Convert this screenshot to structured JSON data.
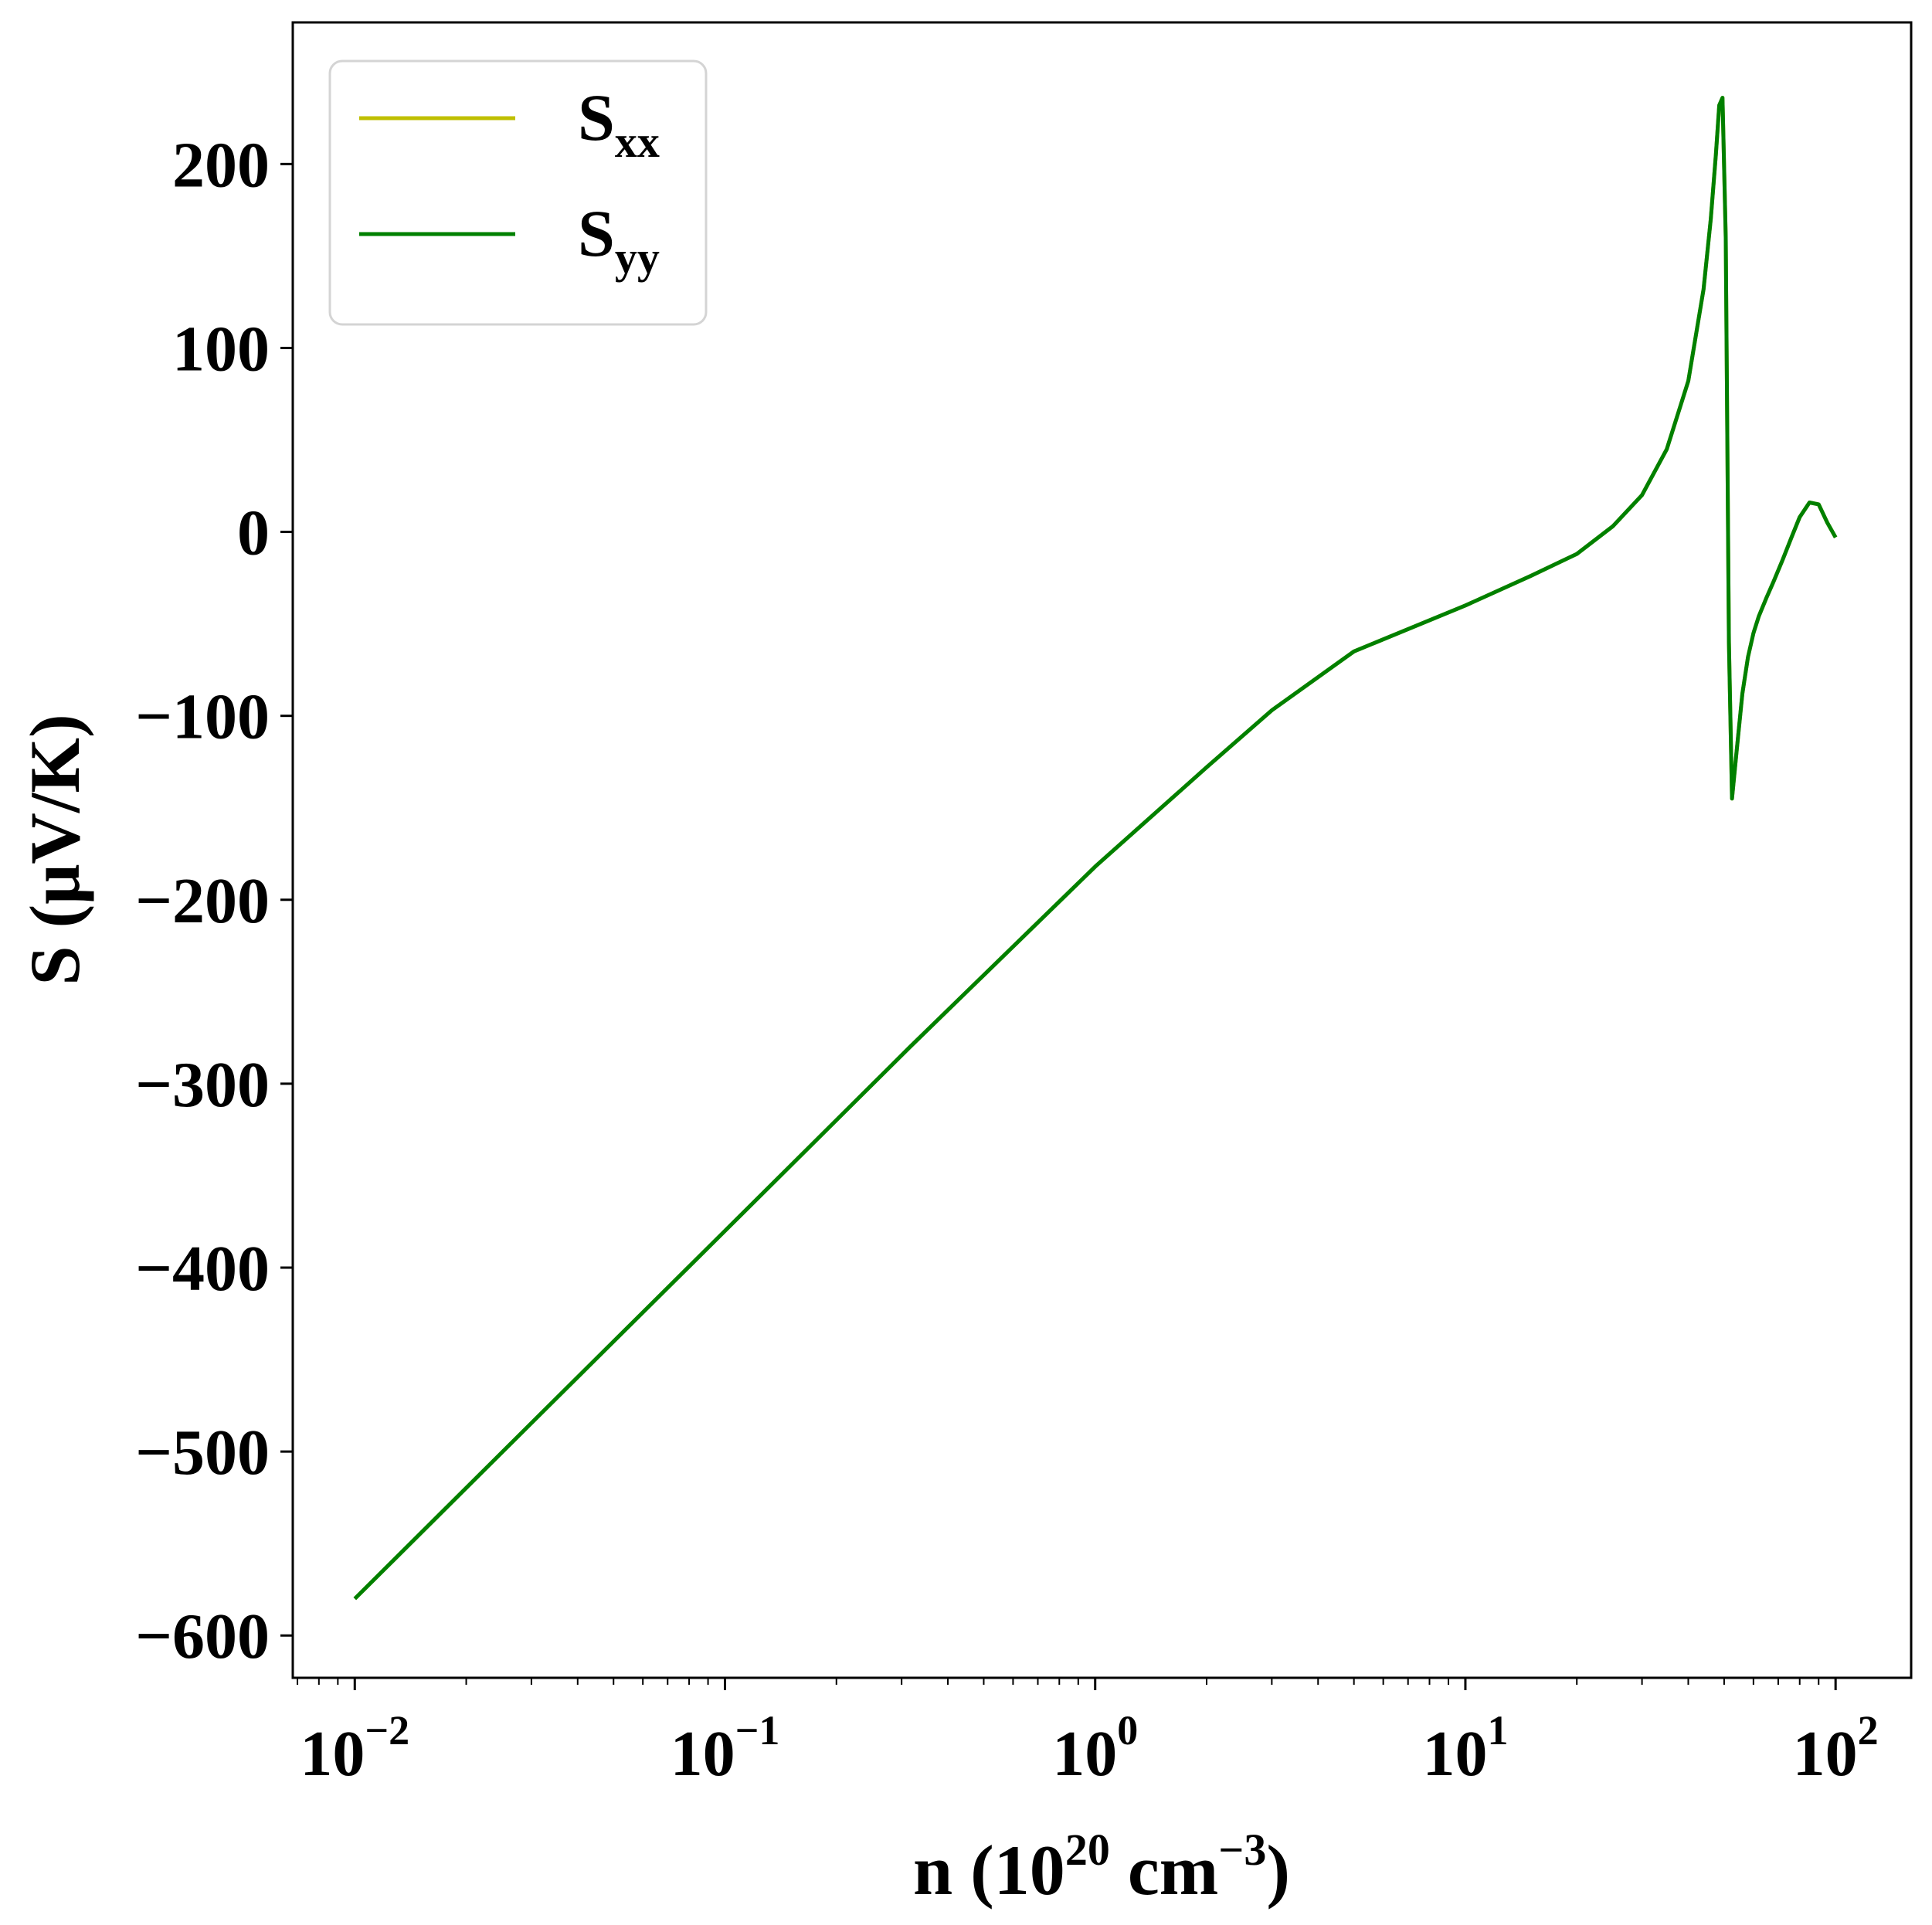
{
  "chart_data": {
    "type": "line",
    "title": "",
    "xlabel": {
      "base": "n (10",
      "exp1": "20",
      "mid": " cm",
      "exp2": "−3",
      "tail": ")"
    },
    "ylabel": "S (μV/K)",
    "xscale": "log",
    "xlim": [
      0.0068,
      160
    ],
    "ylim": [
      -623,
      277
    ],
    "x_ticks": [
      {
        "value": 0.01,
        "base": "10",
        "exp": "−2"
      },
      {
        "value": 0.1,
        "base": "10",
        "exp": "−1"
      },
      {
        "value": 1,
        "base": "10",
        "exp": "0"
      },
      {
        "value": 10,
        "base": "10",
        "exp": "1"
      },
      {
        "value": 100,
        "base": "10",
        "exp": "2"
      }
    ],
    "y_ticks": [
      {
        "value": 200,
        "label": "200"
      },
      {
        "value": 100,
        "label": "100"
      },
      {
        "value": 0,
        "label": "0"
      },
      {
        "value": -100,
        "label": "−100"
      },
      {
        "value": -200,
        "label": "−200"
      },
      {
        "value": -300,
        "label": "−300"
      },
      {
        "value": -400,
        "label": "−400"
      },
      {
        "value": -500,
        "label": "−500"
      },
      {
        "value": -600,
        "label": "−600"
      }
    ],
    "grid": false,
    "legend_position": "top-left",
    "series": [
      {
        "name": "S",
        "sub": "xx",
        "color": "#bfbf00",
        "x": [
          0.01,
          0.0316,
          0.1,
          0.316,
          1,
          2,
          3,
          5,
          10,
          15,
          20,
          25,
          30,
          35,
          40,
          44,
          46,
          47.5,
          48.5,
          49.5,
          50.5,
          51.5,
          52.5,
          54,
          56,
          58,
          60,
          62,
          65,
          68,
          72,
          76,
          80,
          85,
          90,
          95,
          100
        ],
        "values": [
          -580,
          -480,
          -380,
          -280,
          -182,
          -128,
          -97,
          -65,
          -40,
          -24,
          -12,
          3,
          20,
          45,
          82,
          132,
          170,
          205,
          232,
          236,
          160,
          -60,
          -145,
          -120,
          -88,
          -68,
          -55,
          -46,
          -36,
          -27,
          -15,
          -3,
          8,
          16,
          15,
          5,
          -3
        ]
      },
      {
        "name": "S",
        "sub": "yy",
        "color": "#008000",
        "x": [
          0.01,
          0.0316,
          0.1,
          0.316,
          1,
          2,
          3,
          5,
          10,
          15,
          20,
          25,
          30,
          35,
          40,
          44,
          46,
          47.5,
          48.5,
          49.5,
          50.5,
          51.5,
          52.5,
          54,
          56,
          58,
          60,
          62,
          65,
          68,
          72,
          76,
          80,
          85,
          90,
          95,
          100
        ],
        "values": [
          -580,
          -480,
          -380,
          -280,
          -182,
          -128,
          -97,
          -65,
          -40,
          -24,
          -12,
          3,
          20,
          45,
          82,
          132,
          170,
          205,
          232,
          236,
          160,
          -60,
          -145,
          -120,
          -88,
          -68,
          -55,
          -46,
          -36,
          -27,
          -15,
          -3,
          8,
          16,
          15,
          5,
          -3
        ]
      }
    ]
  }
}
